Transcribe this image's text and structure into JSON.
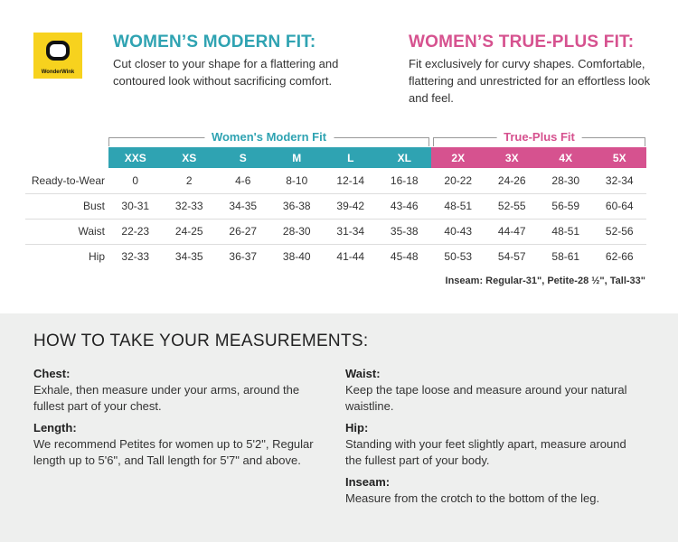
{
  "brand": {
    "name": "WonderWink",
    "color": "#f7d21e"
  },
  "modern": {
    "title": "WOMEN’S MODERN FIT:",
    "desc": "Cut closer to your shape for a flattering and contoured look without sacrificing comfort.",
    "color": "#2fa3b2",
    "bracket": "Women's Modern Fit"
  },
  "plus": {
    "title": "WOMEN’S TRUE-PLUS FIT:",
    "desc": "Fit exclusively for curvy shapes. Comfortable, flattering and unrestricted for an effortless look and feel.",
    "color": "#d6528f",
    "bracket": "True-Plus Fit"
  },
  "table": {
    "sizes": [
      "XXS",
      "XS",
      "S",
      "M",
      "L",
      "XL",
      "2X",
      "3X",
      "4X",
      "5X"
    ],
    "rows": [
      {
        "label": "Ready-to-Wear",
        "values": [
          "0",
          "2",
          "4-6",
          "8-10",
          "12-14",
          "16-18",
          "20-22",
          "24-26",
          "28-30",
          "32-34"
        ]
      },
      {
        "label": "Bust",
        "values": [
          "30-31",
          "32-33",
          "34-35",
          "36-38",
          "39-42",
          "43-46",
          "48-51",
          "52-55",
          "56-59",
          "60-64"
        ]
      },
      {
        "label": "Waist",
        "values": [
          "22-23",
          "24-25",
          "26-27",
          "28-30",
          "31-34",
          "35-38",
          "40-43",
          "44-47",
          "48-51",
          "52-56"
        ]
      },
      {
        "label": "Hip",
        "values": [
          "32-33",
          "34-35",
          "36-37",
          "38-40",
          "41-44",
          "45-48",
          "50-53",
          "54-57",
          "58-61",
          "62-66"
        ]
      }
    ]
  },
  "inseam": "Inseam: Regular-31\",  Petite-28 ½\",  Tall-33\"",
  "howto": {
    "title": "HOW TO TAKE YOUR MEASUREMENTS:",
    "left": [
      {
        "h": "Chest:",
        "t": "Exhale, then measure under your arms, around the fullest part of your chest."
      },
      {
        "h": "Length:",
        "t": "We recommend Petites for women up to 5'2\", Regular length up to 5'6\", and Tall length for 5'7\" and above."
      }
    ],
    "right": [
      {
        "h": "Waist:",
        "t": "Keep the tape loose and measure around your natural waistline."
      },
      {
        "h": "Hip:",
        "t": "Standing with your feet slightly apart, measure around the fullest part of your body."
      },
      {
        "h": "Inseam:",
        "t": "Measure from the crotch to the bottom of the leg."
      }
    ]
  }
}
